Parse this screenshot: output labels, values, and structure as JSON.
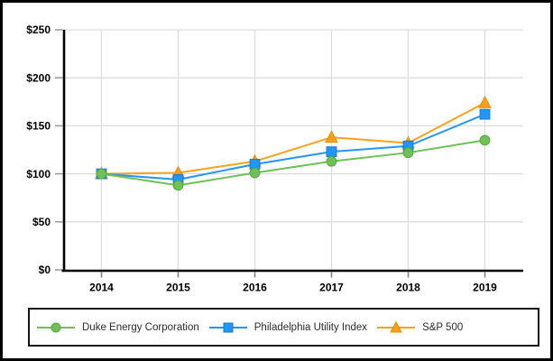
{
  "figure": {
    "background": "#ffffff",
    "border_color": "#000000",
    "gridline_color": "#dddddd",
    "axis_color": "#000000",
    "ytick_color": "#999999",
    "xtick_color": "#808080",
    "label_color": "#000000",
    "legend_border_color": "#161616",
    "legend_text_color": "#2a2a2a"
  },
  "chart_data": {
    "type": "line",
    "title": "",
    "xlabel": "",
    "ylabel": "",
    "categories": [
      "2014",
      "2015",
      "2016",
      "2017",
      "2018",
      "2019"
    ],
    "series": [
      {
        "name": "Duke Energy Corporation",
        "marker": "circle",
        "color": "#6ec155",
        "marker_stroke": "#54a839",
        "values": [
          100,
          88,
          101,
          113,
          122,
          135
        ]
      },
      {
        "name": "Philadelphia Utility Index",
        "marker": "square",
        "color": "#2196f3",
        "marker_stroke": "#1479d6",
        "values": [
          100,
          94,
          110,
          123,
          129,
          162
        ]
      },
      {
        "name": "S&P 500",
        "marker": "triangle",
        "color": "#f9a11b",
        "marker_stroke": "#e28c00",
        "values": [
          100,
          101,
          113,
          138,
          132,
          174
        ]
      }
    ],
    "ylim": [
      0,
      250
    ],
    "ytick_step": 50,
    "ytick_labels": [
      "$0",
      "$50",
      "$100",
      "$150",
      "$200",
      "$250"
    ],
    "grid": true,
    "legend_position": "bottom"
  }
}
